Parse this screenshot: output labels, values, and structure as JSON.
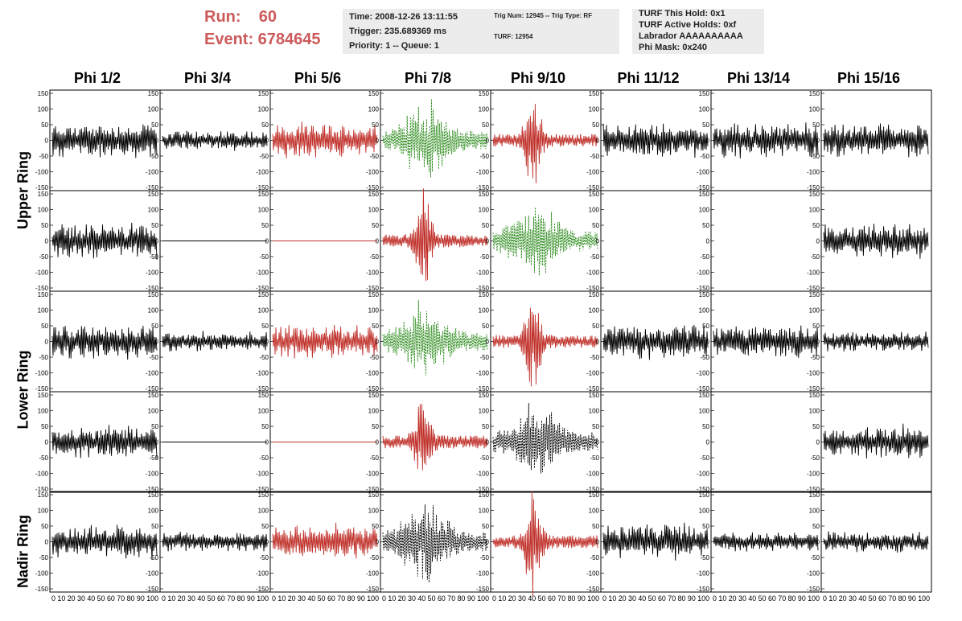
{
  "header": {
    "run_line": "Run:    60",
    "event_line": "Event: 6784645"
  },
  "info_box_1": {
    "time": "Time: 2008-12-26 13:11:55",
    "trigger": "Trigger: 235.689369 ms",
    "priority": "Priority: 1 -- Queue: 1"
  },
  "info_box_2": {
    "trig": "Trig Num: 12945 -- Trig Type: RF",
    "turf": "TURF: 12954"
  },
  "info_box_3": {
    "this_hold": "TURF This Hold: 0x1",
    "active_holds": "TURF Active Holds: 0xf",
    "labrador": "Labrador AAAAAAAAAA",
    "phi_mask": "Phi Mask: 0x240"
  },
  "columns": [
    "Phi 1/2",
    "Phi 3/4",
    "Phi 5/6",
    "Phi 7/8",
    "Phi 9/10",
    "Phi 11/12",
    "Phi 13/14",
    "Phi 15/16"
  ],
  "rings": [
    "Upper Ring",
    "Lower Ring",
    "Nadir Ring"
  ],
  "y_ticks": [
    "150",
    "100",
    "50",
    "0",
    "-50",
    "-100",
    "-150"
  ],
  "x_tick_strip": "0 10 20 30 40 50 60 70 80 90 100",
  "colors": {
    "black": "#000000",
    "red": "#c0302a",
    "green": "#2a8a1a"
  },
  "panels": [
    {
      "row": 0,
      "col": 0,
      "color": "black",
      "style": "solid",
      "amp": "medium"
    },
    {
      "row": 0,
      "col": 1,
      "color": "black",
      "style": "solid",
      "amp": "small"
    },
    {
      "row": 0,
      "col": 2,
      "color": "red",
      "style": "solid",
      "amp": "medium"
    },
    {
      "row": 0,
      "col": 3,
      "color": "green",
      "style": "dashed",
      "amp": "large"
    },
    {
      "row": 0,
      "col": 4,
      "color": "red",
      "style": "solid",
      "amp": "pulse"
    },
    {
      "row": 0,
      "col": 5,
      "color": "black",
      "style": "solid",
      "amp": "medium"
    },
    {
      "row": 0,
      "col": 6,
      "color": "black",
      "style": "solid",
      "amp": "medium"
    },
    {
      "row": 0,
      "col": 7,
      "color": "black",
      "style": "solid",
      "amp": "medium"
    },
    {
      "row": 1,
      "col": 0,
      "color": "black",
      "style": "solid",
      "amp": "medium"
    },
    {
      "row": 1,
      "col": 1,
      "color": "black",
      "style": "solid",
      "amp": "flat"
    },
    {
      "row": 1,
      "col": 2,
      "color": "red",
      "style": "solid",
      "amp": "flat"
    },
    {
      "row": 1,
      "col": 3,
      "color": "red",
      "style": "solid",
      "amp": "pulse"
    },
    {
      "row": 1,
      "col": 4,
      "color": "green",
      "style": "dashed",
      "amp": "large"
    },
    {
      "row": 1,
      "col": 7,
      "color": "black",
      "style": "solid",
      "amp": "medium"
    },
    {
      "row": 2,
      "col": 0,
      "color": "black",
      "style": "solid",
      "amp": "medium"
    },
    {
      "row": 2,
      "col": 1,
      "color": "black",
      "style": "solid",
      "amp": "small"
    },
    {
      "row": 2,
      "col": 2,
      "color": "red",
      "style": "solid",
      "amp": "medium"
    },
    {
      "row": 2,
      "col": 3,
      "color": "green",
      "style": "dashed",
      "amp": "large"
    },
    {
      "row": 2,
      "col": 4,
      "color": "red",
      "style": "solid",
      "amp": "pulse"
    },
    {
      "row": 2,
      "col": 5,
      "color": "black",
      "style": "solid",
      "amp": "medium"
    },
    {
      "row": 2,
      "col": 6,
      "color": "black",
      "style": "solid",
      "amp": "medium"
    },
    {
      "row": 2,
      "col": 7,
      "color": "black",
      "style": "solid",
      "amp": "small"
    },
    {
      "row": 3,
      "col": 0,
      "color": "black",
      "style": "solid",
      "amp": "medium"
    },
    {
      "row": 3,
      "col": 1,
      "color": "black",
      "style": "solid",
      "amp": "flat"
    },
    {
      "row": 3,
      "col": 2,
      "color": "red",
      "style": "solid",
      "amp": "flat"
    },
    {
      "row": 3,
      "col": 3,
      "color": "red",
      "style": "solid",
      "amp": "pulse"
    },
    {
      "row": 3,
      "col": 4,
      "color": "black",
      "style": "dashed",
      "amp": "large"
    },
    {
      "row": 3,
      "col": 7,
      "color": "black",
      "style": "solid",
      "amp": "medium"
    },
    {
      "row": 4,
      "col": 0,
      "color": "black",
      "style": "solid",
      "amp": "medium"
    },
    {
      "row": 4,
      "col": 1,
      "color": "black",
      "style": "solid",
      "amp": "small"
    },
    {
      "row": 4,
      "col": 2,
      "color": "red",
      "style": "solid",
      "amp": "medium"
    },
    {
      "row": 4,
      "col": 3,
      "color": "black",
      "style": "dashed",
      "amp": "large"
    },
    {
      "row": 4,
      "col": 4,
      "color": "red",
      "style": "solid",
      "amp": "pulse"
    },
    {
      "row": 4,
      "col": 5,
      "color": "black",
      "style": "solid",
      "amp": "medium"
    },
    {
      "row": 4,
      "col": 6,
      "color": "black",
      "style": "solid",
      "amp": "small"
    },
    {
      "row": 4,
      "col": 7,
      "color": "black",
      "style": "solid",
      "amp": "small"
    }
  ]
}
